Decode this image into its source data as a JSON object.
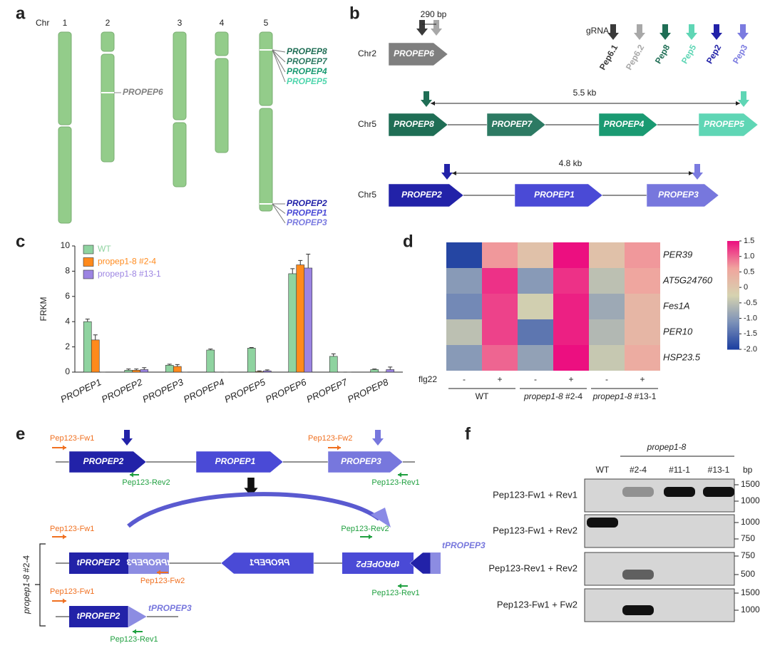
{
  "panel_labels": [
    "a",
    "b",
    "c",
    "d",
    "e",
    "f"
  ],
  "panel_a": {
    "chr_label": "Chr",
    "chromosomes": [
      "1",
      "2",
      "3",
      "4",
      "5"
    ],
    "genes_chr2": [
      "PROPEP6"
    ],
    "genes_chr5_top": [
      "PROPEP8",
      "PROPEP7",
      "PROPEP4",
      "PROPEP5"
    ],
    "genes_chr5_bottom": [
      "PROPEP2",
      "PROPEP1",
      "PROPEP3"
    ]
  },
  "panel_b": {
    "spacing": "290 bp",
    "grna_label": "gRNA",
    "grnas": [
      "Pep6.1",
      "Pep6.2",
      "Pep8",
      "Pep5",
      "Pep2",
      "Pep3"
    ],
    "rows": [
      {
        "chr": "Chr2",
        "genes": [
          "PROPEP6"
        ]
      },
      {
        "chr": "Chr5",
        "genes": [
          "PROPEP8",
          "PROPEP7",
          "PROPEP4",
          "PROPEP5"
        ],
        "distance": "5.5 kb"
      },
      {
        "chr": "Chr5",
        "genes": [
          "PROPEP2",
          "PROPEP1",
          "PROPEP3"
        ],
        "distance": "4.8 kb"
      }
    ]
  },
  "chart_data": [
    {
      "type": "bar",
      "ylabel": "FRKM",
      "categories": [
        "PROPEP1",
        "PROPEP2",
        "PROPEP3",
        "PROPEP4",
        "PROPEP5",
        "PROPEP6",
        "PROPEP7",
        "PROPEP8"
      ],
      "series": [
        {
          "name": "WT",
          "color": "#8fd3a0",
          "values": [
            4.0,
            0.15,
            0.55,
            1.75,
            1.9,
            7.8,
            1.25,
            0.2
          ],
          "errors": [
            0.2,
            0.1,
            0.08,
            0.08,
            0.05,
            0.4,
            0.2,
            0.05
          ]
        },
        {
          "name": "propep1-8 #2-4",
          "color": "#ff8a1c",
          "values": [
            2.55,
            0.15,
            0.45,
            0,
            0.05,
            8.5,
            0,
            0
          ],
          "errors": [
            0.4,
            0.1,
            0.15,
            0,
            0.05,
            0.35,
            0,
            0
          ]
        },
        {
          "name": "propep1-8 #13-1",
          "color": "#9c84e2",
          "values": [
            0,
            0.2,
            0,
            0,
            0.1,
            8.25,
            0,
            0.2
          ],
          "errors": [
            0,
            0.15,
            0,
            0,
            0.08,
            1.1,
            0,
            0.2
          ]
        }
      ],
      "ylim": [
        0,
        10
      ],
      "yticks": [
        0,
        2,
        4,
        6,
        8,
        10
      ]
    },
    {
      "type": "heatmap",
      "x_label": "flg22",
      "treatments": [
        "-",
        "+",
        "-",
        "+",
        "-",
        "+"
      ],
      "groups": [
        {
          "genotype": "WT"
        },
        {
          "genotype": "propep1-8",
          "line": "#2-4"
        },
        {
          "genotype": "propep1-8",
          "line": "#13-1"
        }
      ],
      "rows": [
        "PER39",
        "AT5G24760",
        "Fes1A",
        "PER10",
        "HSP23.5"
      ],
      "values": [
        [
          -1.9,
          0.7,
          0.1,
          1.5,
          0.1,
          0.7
        ],
        [
          -1.0,
          1.3,
          -1.0,
          1.3,
          -0.5,
          0.6
        ],
        [
          -1.2,
          1.2,
          -0.3,
          1.4,
          -0.8,
          0.3
        ],
        [
          -0.5,
          1.2,
          -1.4,
          1.4,
          -0.6,
          0.3
        ],
        [
          -1.0,
          1.0,
          -0.9,
          1.5,
          -0.4,
          0.5
        ]
      ],
      "zlim": [
        -2.0,
        1.5
      ],
      "zticks": [
        1.5,
        {
          "value": 1.0,
          "label": "1.0"
        },
        0.5,
        0,
        -0.5,
        {
          "value": -1.0,
          "label": "-1.0"
        },
        -1.5,
        {
          "value": -2.0,
          "label": "-2.0"
        }
      ],
      "colors": [
        "#1a3da0",
        "#7b90b8",
        "#d6d3b0",
        "#f0a59e",
        "#ec0f80"
      ]
    }
  ],
  "panel_e": {
    "top": {
      "genes": [
        "PROPEP2",
        "PROPEP1",
        "PROPEP3"
      ],
      "primers": [
        "Pep123-Fw1",
        "Pep123-Fw2",
        "Pep123-Rev2",
        "Pep123-Rev1"
      ]
    },
    "inverted": {
      "genes": [
        "tPROPEP2",
        "tPROPEP3",
        "PROPEP1",
        "tPROPEP2",
        "tPROPEP3"
      ],
      "primers": [
        "Pep123-Fw1",
        "Pep123-Fw2",
        "Pep123-Rev2",
        "Pep123-Rev1"
      ]
    },
    "deleted": {
      "genes": [
        "tPROPEP2",
        "tPROPEP3"
      ],
      "primers": [
        "Pep123-Fw1",
        "Pep123-Rev1"
      ]
    },
    "line_label": {
      "genotype": "propep1-8",
      "line": "#2-4"
    }
  },
  "panel_f": {
    "genotype": "propep1-8",
    "lanes": [
      "WT",
      "#2-4",
      "#11-1",
      "#13-1"
    ],
    "unit": "bp",
    "rows": [
      {
        "primers": "Pep123-Fw1 + Rev1",
        "markers": [
          1500,
          1000
        ]
      },
      {
        "primers": "Pep123-Fw1 + Rev2",
        "markers": [
          1000,
          750
        ]
      },
      {
        "primers": "Pep123-Rev1 + Rev2",
        "markers": [
          750,
          500
        ]
      },
      {
        "primers": "Pep123-Fw1 + Fw2",
        "markers": [
          1500,
          1000
        ]
      }
    ]
  }
}
